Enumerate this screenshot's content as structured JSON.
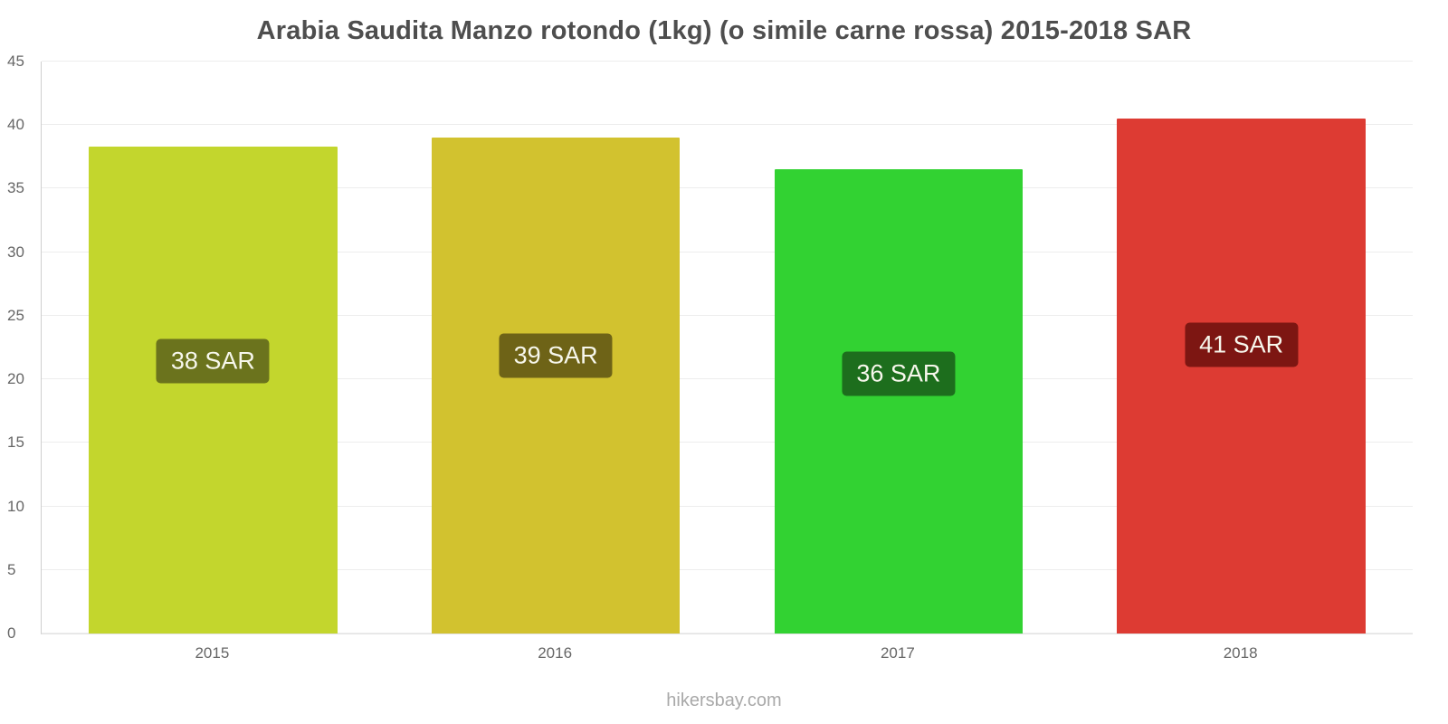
{
  "title": "Arabia Saudita Manzo rotondo (1kg) (o simile carne rossa) 2015-2018 SAR",
  "footer": "hikersbay.com",
  "chart_data": {
    "type": "bar",
    "title": "Arabia Saudita Manzo rotondo (1kg) (o simile carne rossa) 2015-2018 SAR",
    "categories": [
      "2015",
      "2016",
      "2017",
      "2018"
    ],
    "values": [
      38.3,
      39.0,
      36.5,
      40.5
    ],
    "value_labels": [
      "38 SAR",
      "39 SAR",
      "36 SAR",
      "41 SAR"
    ],
    "bar_colors": [
      "#c3d62d",
      "#d2c22f",
      "#32d232",
      "#dd3b33"
    ],
    "label_bg_colors": [
      "#6b731d",
      "#6e6317",
      "#1d6e1d",
      "#7d1612"
    ],
    "xlabel": "",
    "ylabel": "",
    "ylim": [
      0,
      45
    ],
    "yticks": [
      0,
      5,
      10,
      15,
      20,
      25,
      30,
      35,
      40,
      45
    ],
    "grid": true,
    "legend_position": "none",
    "unit": "SAR"
  }
}
